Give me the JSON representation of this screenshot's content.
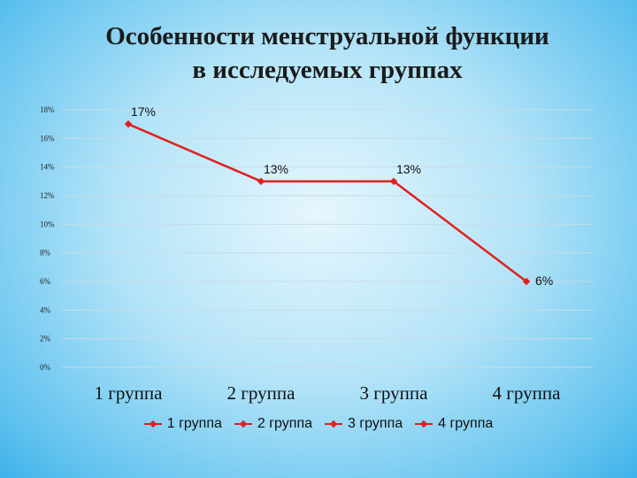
{
  "title_line1": "Особенности менструальной функции",
  "title_line2": "в исследуемых группах",
  "colors": {
    "series": "#e02020",
    "grid": "#c9dbe6"
  },
  "chart_data": {
    "type": "line",
    "categories": [
      "1 группа",
      "2 группа",
      "3 группа",
      "4 группа"
    ],
    "series": [
      {
        "values": [
          17,
          13,
          13,
          6
        ],
        "labels": [
          "17%",
          "13%",
          "13%",
          "6%"
        ]
      }
    ],
    "ylim": [
      0,
      18
    ],
    "yticks": [
      "0%",
      "2%",
      "4%",
      "6%",
      "8%",
      "10%",
      "12%",
      "14%",
      "16%",
      "18%"
    ],
    "grid": true,
    "legend": [
      "1 группа",
      "2 группа",
      "3 группа",
      "4 группа"
    ],
    "legend_position": "bottom"
  }
}
